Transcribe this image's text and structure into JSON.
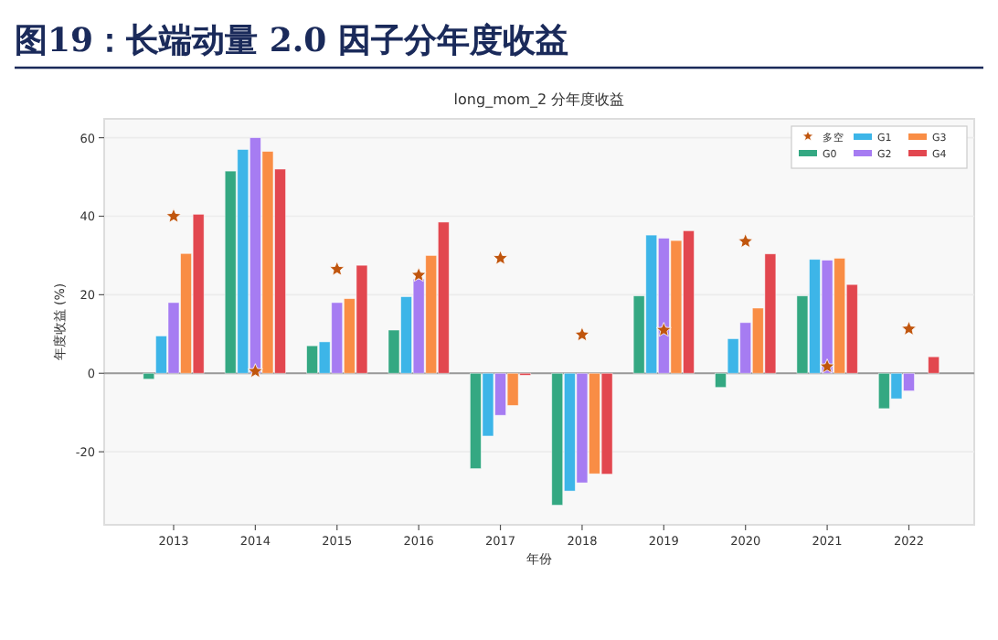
{
  "chart_data": {
    "type": "bar",
    "title": "图19：长端动量 2.0 因子分年度收益",
    "subtitle": "long_mom_2 分年度收益",
    "xlabel": "年份",
    "ylabel": "年度收益 (%)",
    "categories": [
      "2013",
      "2014",
      "2015",
      "2016",
      "2017",
      "2018",
      "2019",
      "2020",
      "2021",
      "2022"
    ],
    "series": [
      {
        "name": "多空",
        "type": "scatter",
        "marker": "star",
        "color": "#c0550d",
        "values": [
          40,
          0.5,
          26.5,
          25,
          29.3,
          9.8,
          11,
          33.6,
          1.7,
          11.3
        ]
      },
      {
        "name": "G0",
        "color": "#34a882",
        "values": [
          -1.5,
          51.5,
          7,
          11,
          -24.3,
          -33.6,
          19.7,
          -3.6,
          19.7,
          -9
        ]
      },
      {
        "name": "G1",
        "color": "#3db5e8",
        "values": [
          9.5,
          57,
          8,
          19.5,
          -16,
          -30,
          35.2,
          8.8,
          29,
          -6.5
        ]
      },
      {
        "name": "G2",
        "color": "#a67cf2",
        "values": [
          18,
          60,
          18,
          24,
          -10.7,
          -27.9,
          34.4,
          12.9,
          28.8,
          -4.5
        ]
      },
      {
        "name": "G3",
        "color": "#f98d45",
        "values": [
          30.5,
          56.5,
          19,
          30,
          -8.2,
          -25.6,
          33.8,
          16.6,
          29.3,
          null
        ]
      },
      {
        "name": "G4",
        "color": "#e2474f",
        "values": [
          40.5,
          52,
          27.5,
          38.5,
          -0.5,
          -25.7,
          36.3,
          30.4,
          22.6,
          4.2
        ]
      }
    ],
    "ylim": [
      -38.6,
      64.8
    ],
    "yticks": [
      -20,
      0,
      20,
      40,
      60
    ],
    "grid": "y",
    "legend": "top right"
  }
}
